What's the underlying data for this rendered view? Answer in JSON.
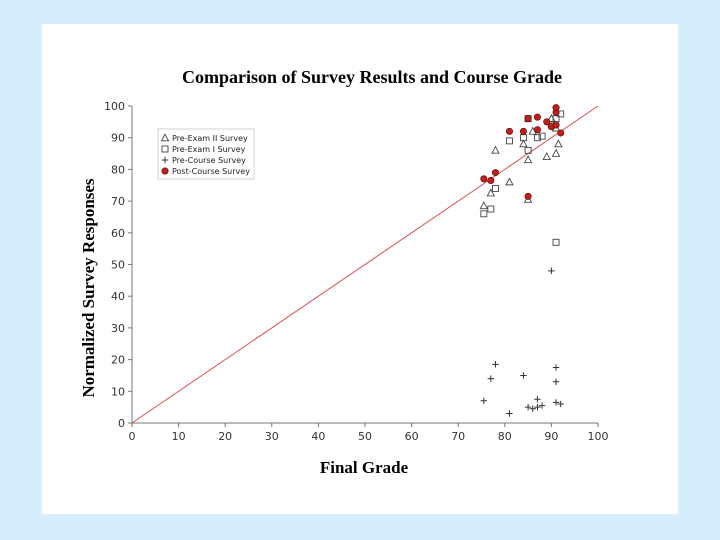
{
  "chart_data": {
    "type": "scatter",
    "title": "Comparison of Survey Results and Course Grade",
    "xlabel": "Final Grade",
    "ylabel": "Normalized Survey Responses",
    "xlim": [
      0,
      100
    ],
    "ylim": [
      0,
      100
    ],
    "xticks": [
      0,
      10,
      20,
      30,
      40,
      50,
      60,
      70,
      80,
      90,
      100
    ],
    "yticks": [
      0,
      10,
      20,
      30,
      40,
      50,
      60,
      70,
      80,
      90,
      100
    ],
    "grid": false,
    "legend_position": "top-left",
    "reference_line": {
      "name": "y = x",
      "points": [
        [
          0,
          0
        ],
        [
          100,
          100
        ]
      ],
      "color": "#e05050"
    },
    "series": [
      {
        "name": "Pre-Exam II Survey",
        "marker": "triangle",
        "color": "#444444",
        "points": [
          [
            75.5,
            68.5
          ],
          [
            77,
            72.5
          ],
          [
            78,
            86
          ],
          [
            81,
            76
          ],
          [
            84,
            88
          ],
          [
            85,
            70.5
          ],
          [
            85,
            83
          ],
          [
            86,
            92
          ],
          [
            89,
            84
          ],
          [
            90,
            96
          ],
          [
            91,
            85
          ],
          [
            91.5,
            88
          ],
          [
            91,
            93
          ]
        ]
      },
      {
        "name": "Pre-Exam I Survey",
        "marker": "square",
        "color": "#444444",
        "points": [
          [
            75.5,
            66
          ],
          [
            77,
            67.5
          ],
          [
            78,
            74
          ],
          [
            81,
            89
          ],
          [
            84,
            90
          ],
          [
            85,
            86
          ],
          [
            85,
            96
          ],
          [
            87,
            90
          ],
          [
            88,
            90.5
          ],
          [
            90,
            94
          ],
          [
            91,
            96
          ],
          [
            91,
            57
          ],
          [
            92,
            97.5
          ]
        ]
      },
      {
        "name": "Pre-Course Survey",
        "marker": "plus",
        "color": "#333333",
        "points": [
          [
            75.5,
            7
          ],
          [
            77,
            14
          ],
          [
            78,
            18.5
          ],
          [
            81,
            3
          ],
          [
            84,
            15
          ],
          [
            85,
            5
          ],
          [
            86,
            4.5
          ],
          [
            87,
            5
          ],
          [
            87,
            7.5
          ],
          [
            88,
            5.5
          ],
          [
            90,
            48
          ],
          [
            91,
            6.5
          ],
          [
            91,
            13
          ],
          [
            91,
            17.5
          ],
          [
            92,
            6
          ]
        ]
      },
      {
        "name": "Post-Course Survey",
        "marker": "circle",
        "color": "#c0201c",
        "points": [
          [
            75.5,
            77
          ],
          [
            77,
            76.5
          ],
          [
            78,
            79
          ],
          [
            81,
            92
          ],
          [
            84,
            92
          ],
          [
            85,
            71.5
          ],
          [
            85,
            96
          ],
          [
            87,
            92.5
          ],
          [
            87,
            96.5
          ],
          [
            89,
            95
          ],
          [
            90,
            93.5
          ],
          [
            91,
            94
          ],
          [
            91,
            98
          ],
          [
            91,
            99.5
          ],
          [
            92,
            91.5
          ]
        ]
      }
    ]
  }
}
